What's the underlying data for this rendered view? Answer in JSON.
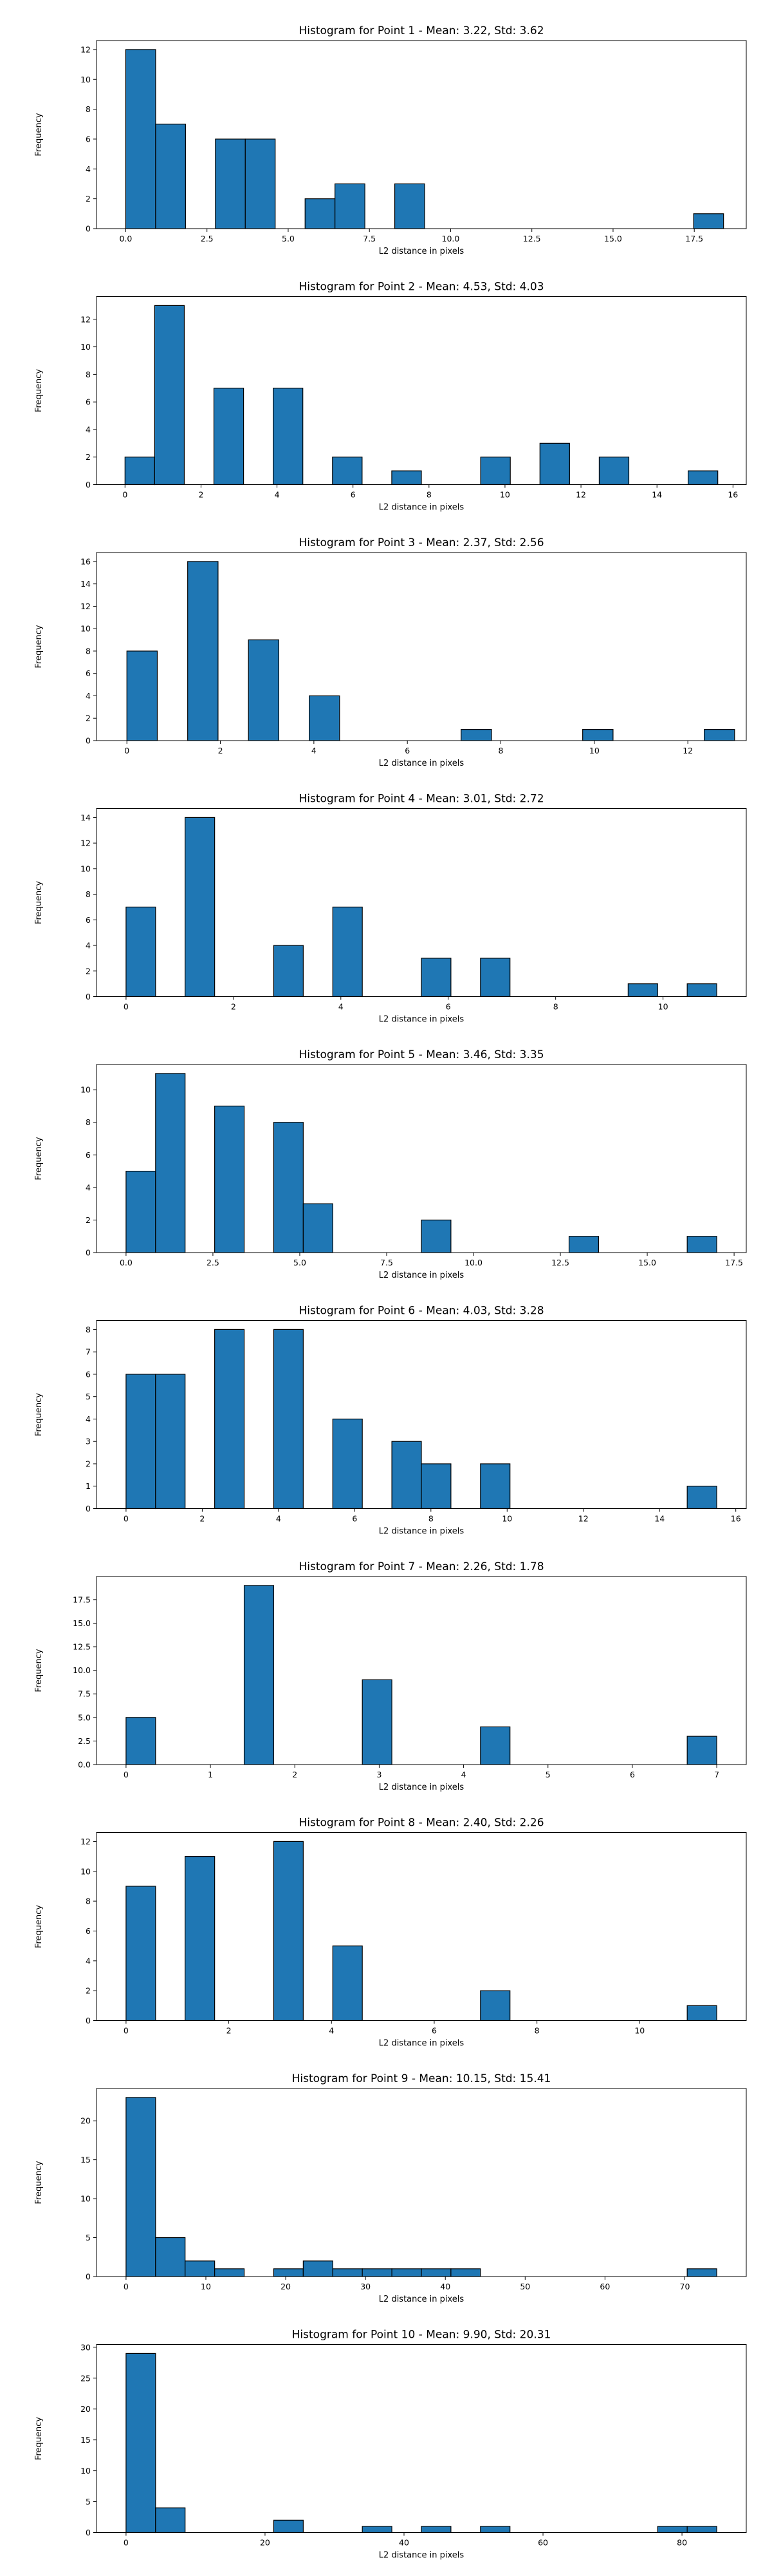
{
  "colors": {
    "bar_fill": "#1f77b4",
    "bar_edge": "#000000",
    "background": "#ffffff"
  },
  "chart_data": [
    {
      "type": "bar",
      "title": "Histogram for Point 1 - Mean: 3.22, Std: 3.62",
      "xlabel": "L2 distance in pixels",
      "ylabel": "Frequency",
      "xlim": [
        -0.9,
        19.1
      ],
      "ylim": [
        0,
        12.6
      ],
      "xticks": [
        0.0,
        2.5,
        5.0,
        7.5,
        10.0,
        12.5,
        15.0,
        17.5
      ],
      "xtick_labels": [
        "0.0",
        "2.5",
        "5.0",
        "7.5",
        "10.0",
        "12.5",
        "15.0",
        "17.5"
      ],
      "yticks": [
        0,
        2,
        4,
        6,
        8,
        10,
        12
      ],
      "ytick_labels": [
        "0",
        "2",
        "4",
        "6",
        "8",
        "10",
        "12"
      ],
      "bins": [
        [
          0.0,
          0.92,
          12
        ],
        [
          0.92,
          1.84,
          7
        ],
        [
          2.76,
          3.68,
          6
        ],
        [
          3.68,
          4.6,
          6
        ],
        [
          5.52,
          6.44,
          2
        ],
        [
          6.44,
          7.36,
          3
        ],
        [
          8.28,
          9.2,
          3
        ],
        [
          17.48,
          18.4,
          1
        ]
      ]
    },
    {
      "type": "bar",
      "title": "Histogram for Point 2 - Mean: 4.53, Std: 4.03",
      "xlabel": "L2 distance in pixels",
      "ylabel": "Frequency",
      "xlim": [
        -0.75,
        16.35
      ],
      "ylim": [
        0,
        13.65
      ],
      "xticks": [
        0,
        2,
        4,
        6,
        8,
        10,
        12,
        14,
        16
      ],
      "xtick_labels": [
        "0",
        "2",
        "4",
        "6",
        "8",
        "10",
        "12",
        "14",
        "16"
      ],
      "yticks": [
        0,
        2,
        4,
        6,
        8,
        10,
        12
      ],
      "ytick_labels": [
        "0",
        "2",
        "4",
        "6",
        "8",
        "10",
        "12"
      ],
      "bins": [
        [
          0.0,
          0.78,
          2
        ],
        [
          0.78,
          1.56,
          13
        ],
        [
          2.34,
          3.12,
          7
        ],
        [
          3.9,
          4.68,
          7
        ],
        [
          5.46,
          6.24,
          2
        ],
        [
          7.02,
          7.8,
          1
        ],
        [
          9.36,
          10.14,
          2
        ],
        [
          10.92,
          11.7,
          3
        ],
        [
          12.48,
          13.26,
          2
        ],
        [
          14.82,
          15.6,
          1
        ]
      ]
    },
    {
      "type": "bar",
      "title": "Histogram for Point 3 - Mean: 2.37, Std: 2.56",
      "xlabel": "L2 distance in pixels",
      "ylabel": "Frequency",
      "xlim": [
        -0.65,
        13.25
      ],
      "ylim": [
        0,
        16.8
      ],
      "xticks": [
        0,
        2,
        4,
        6,
        8,
        10,
        12
      ],
      "xtick_labels": [
        "0",
        "2",
        "4",
        "6",
        "8",
        "10",
        "12"
      ],
      "yticks": [
        0,
        2,
        4,
        6,
        8,
        10,
        12,
        14,
        16
      ],
      "ytick_labels": [
        "0",
        "2",
        "4",
        "6",
        "8",
        "10",
        "12",
        "14",
        "16"
      ],
      "bins": [
        [
          0.0,
          0.65,
          8
        ],
        [
          1.3,
          1.95,
          16
        ],
        [
          2.6,
          3.25,
          9
        ],
        [
          3.9,
          4.55,
          4
        ],
        [
          7.15,
          7.8,
          1
        ],
        [
          9.75,
          10.4,
          1
        ],
        [
          12.35,
          13.0,
          1
        ]
      ]
    },
    {
      "type": "bar",
      "title": "Histogram for Point 4 - Mean: 3.01, Std: 2.72",
      "xlabel": "L2 distance in pixels",
      "ylabel": "Frequency",
      "xlim": [
        -0.55,
        11.55
      ],
      "ylim": [
        0,
        14.7
      ],
      "xticks": [
        0,
        2,
        4,
        6,
        8,
        10
      ],
      "xtick_labels": [
        "0",
        "2",
        "4",
        "6",
        "8",
        "10"
      ],
      "yticks": [
        0,
        2,
        4,
        6,
        8,
        10,
        12,
        14
      ],
      "ytick_labels": [
        "0",
        "2",
        "4",
        "6",
        "8",
        "10",
        "12",
        "14"
      ],
      "bins": [
        [
          0.0,
          0.55,
          7
        ],
        [
          1.1,
          1.65,
          14
        ],
        [
          2.75,
          3.3,
          4
        ],
        [
          3.85,
          4.4,
          7
        ],
        [
          5.5,
          6.05,
          3
        ],
        [
          6.6,
          7.15,
          3
        ],
        [
          9.35,
          9.9,
          1
        ],
        [
          10.45,
          11.0,
          1
        ]
      ]
    },
    {
      "type": "bar",
      "title": "Histogram for Point 5 - Mean: 3.46, Std: 3.35",
      "xlabel": "L2 distance in pixels",
      "ylabel": "Frequency",
      "xlim": [
        -0.85,
        17.85
      ],
      "ylim": [
        0,
        11.55
      ],
      "xticks": [
        0.0,
        2.5,
        5.0,
        7.5,
        10.0,
        12.5,
        15.0,
        17.5
      ],
      "xtick_labels": [
        "0.0",
        "2.5",
        "5.0",
        "7.5",
        "10.0",
        "12.5",
        "15.0",
        "17.5"
      ],
      "yticks": [
        0,
        2,
        4,
        6,
        8,
        10
      ],
      "ytick_labels": [
        "0",
        "2",
        "4",
        "6",
        "8",
        "10"
      ],
      "bins": [
        [
          0.0,
          0.85,
          5
        ],
        [
          0.85,
          1.7,
          11
        ],
        [
          2.55,
          3.4,
          9
        ],
        [
          4.25,
          5.1,
          8
        ],
        [
          5.1,
          5.95,
          3
        ],
        [
          8.5,
          9.35,
          2
        ],
        [
          12.75,
          13.6,
          1
        ],
        [
          16.15,
          17.0,
          1
        ]
      ]
    },
    {
      "type": "bar",
      "title": "Histogram for Point 6 - Mean: 4.03, Std: 3.28",
      "xlabel": "L2 distance in pixels",
      "ylabel": "Frequency",
      "xlim": [
        -0.775,
        16.275
      ],
      "ylim": [
        0,
        8.4
      ],
      "xticks": [
        0,
        2,
        4,
        6,
        8,
        10,
        12,
        14,
        16
      ],
      "xtick_labels": [
        "0",
        "2",
        "4",
        "6",
        "8",
        "10",
        "12",
        "14",
        "16"
      ],
      "yticks": [
        0,
        1,
        2,
        3,
        4,
        5,
        6,
        7,
        8
      ],
      "ytick_labels": [
        "0",
        "1",
        "2",
        "3",
        "4",
        "5",
        "6",
        "7",
        "8"
      ],
      "bins": [
        [
          0.0,
          0.775,
          6
        ],
        [
          0.775,
          1.55,
          6
        ],
        [
          2.325,
          3.1,
          8
        ],
        [
          3.875,
          4.65,
          8
        ],
        [
          5.425,
          6.2,
          4
        ],
        [
          6.975,
          7.75,
          3
        ],
        [
          7.75,
          8.525,
          2
        ],
        [
          9.3,
          10.075,
          2
        ],
        [
          14.725,
          15.5,
          1
        ]
      ]
    },
    {
      "type": "bar",
      "title": "Histogram for Point 7 - Mean: 2.26, Std: 1.78",
      "xlabel": "L2 distance in pixels",
      "ylabel": "Frequency",
      "xlim": [
        -0.35,
        7.35
      ],
      "ylim": [
        0,
        19.95
      ],
      "xticks": [
        0,
        1,
        2,
        3,
        4,
        5,
        6,
        7
      ],
      "xtick_labels": [
        "0",
        "1",
        "2",
        "3",
        "4",
        "5",
        "6",
        "7"
      ],
      "yticks": [
        0,
        2.5,
        5,
        7.5,
        10,
        12.5,
        15,
        17.5
      ],
      "ytick_labels": [
        "0.0",
        "2.5",
        "5.0",
        "7.5",
        "10.0",
        "12.5",
        "15.0",
        "17.5"
      ],
      "bins": [
        [
          0.0,
          0.35,
          5
        ],
        [
          1.4,
          1.75,
          19
        ],
        [
          2.8,
          3.15,
          9
        ],
        [
          4.2,
          4.55,
          4
        ],
        [
          6.65,
          7.0,
          3
        ]
      ]
    },
    {
      "type": "bar",
      "title": "Histogram for Point 8 - Mean: 2.40, Std: 2.26",
      "xlabel": "L2 distance in pixels",
      "ylabel": "Frequency",
      "xlim": [
        -0.575,
        12.075
      ],
      "ylim": [
        0,
        12.6
      ],
      "xticks": [
        0,
        2,
        4,
        6,
        8,
        10
      ],
      "xtick_labels": [
        "0",
        "2",
        "4",
        "6",
        "8",
        "10"
      ],
      "yticks": [
        0,
        2,
        4,
        6,
        8,
        10,
        12
      ],
      "ytick_labels": [
        "0",
        "2",
        "4",
        "6",
        "8",
        "10",
        "12"
      ],
      "bins": [
        [
          0.0,
          0.575,
          9
        ],
        [
          1.15,
          1.725,
          11
        ],
        [
          2.875,
          3.45,
          12
        ],
        [
          4.025,
          4.6,
          5
        ],
        [
          6.9,
          7.475,
          2
        ],
        [
          10.925,
          11.5,
          1
        ]
      ]
    },
    {
      "type": "bar",
      "title": "Histogram for Point 9 - Mean: 10.15, Std: 15.41",
      "xlabel": "L2 distance in pixels",
      "ylabel": "Frequency",
      "xlim": [
        -3.7,
        77.7
      ],
      "ylim": [
        0,
        24.15
      ],
      "xticks": [
        0,
        10,
        20,
        30,
        40,
        50,
        60,
        70
      ],
      "xtick_labels": [
        "0",
        "10",
        "20",
        "30",
        "40",
        "50",
        "60",
        "70"
      ],
      "yticks": [
        0,
        5,
        10,
        15,
        20
      ],
      "ytick_labels": [
        "0",
        "5",
        "10",
        "15",
        "20"
      ],
      "bins": [
        [
          0.0,
          3.7,
          23
        ],
        [
          3.7,
          7.4,
          5
        ],
        [
          7.4,
          11.1,
          2
        ],
        [
          11.1,
          14.8,
          1
        ],
        [
          18.5,
          22.2,
          1
        ],
        [
          22.2,
          25.9,
          2
        ],
        [
          25.9,
          29.6,
          1
        ],
        [
          29.6,
          33.3,
          1
        ],
        [
          33.3,
          37.0,
          1
        ],
        [
          37.0,
          40.7,
          1
        ],
        [
          40.7,
          44.4,
          1
        ],
        [
          70.3,
          74.0,
          1
        ]
      ]
    },
    {
      "type": "bar",
      "title": "Histogram for Point 10 - Mean: 9.90, Std: 20.31",
      "xlabel": "L2 distance in pixels",
      "ylabel": "Frequency",
      "xlim": [
        -4.25,
        89.25
      ],
      "ylim": [
        0,
        30.45
      ],
      "xticks": [
        0,
        20,
        40,
        60,
        80
      ],
      "xtick_labels": [
        "0",
        "20",
        "40",
        "60",
        "80"
      ],
      "yticks": [
        0,
        5,
        10,
        15,
        20,
        25,
        30
      ],
      "ytick_labels": [
        "0",
        "5",
        "10",
        "15",
        "20",
        "25",
        "30"
      ],
      "bins": [
        [
          0.0,
          4.25,
          29
        ],
        [
          4.25,
          8.5,
          4
        ],
        [
          21.25,
          25.5,
          2
        ],
        [
          34.0,
          38.25,
          1
        ],
        [
          42.5,
          46.75,
          1
        ],
        [
          51.0,
          55.25,
          1
        ],
        [
          76.5,
          80.75,
          1
        ],
        [
          80.75,
          85.0,
          1
        ]
      ]
    }
  ]
}
